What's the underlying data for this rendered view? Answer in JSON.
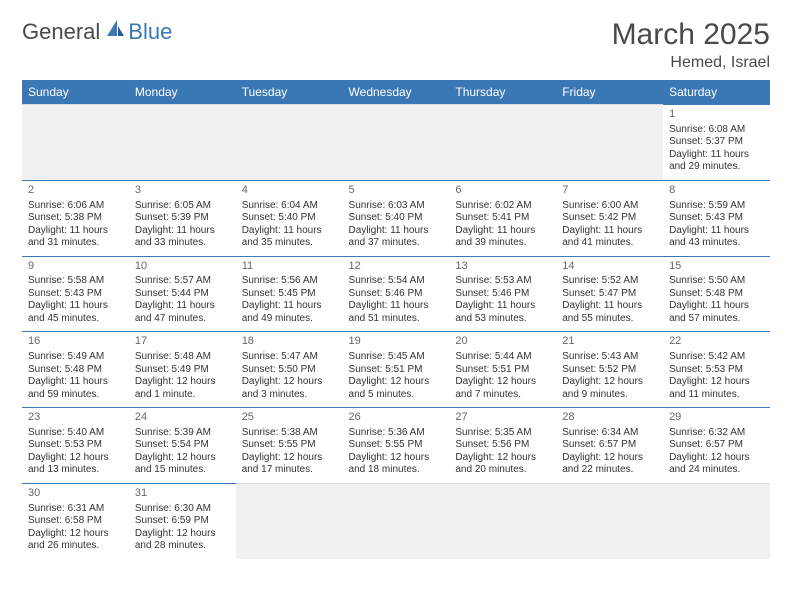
{
  "logo": {
    "text_general": "General",
    "text_blue": "Blue"
  },
  "title": {
    "month": "March 2025",
    "location": "Hemed, Israel"
  },
  "colors": {
    "header_bg": "#3a78b5",
    "header_text": "#ffffff",
    "border": "#3a78b5",
    "empty_bg": "#f1f1f1",
    "text": "#333333",
    "page_bg": "#ffffff"
  },
  "weekdays": [
    "Sunday",
    "Monday",
    "Tuesday",
    "Wednesday",
    "Thursday",
    "Friday",
    "Saturday"
  ],
  "month": {
    "first_weekday": 6,
    "num_days": 31
  },
  "days": {
    "1": {
      "sunrise": "6:08 AM",
      "sunset": "5:37 PM",
      "daylight": "11 hours and 29 minutes."
    },
    "2": {
      "sunrise": "6:06 AM",
      "sunset": "5:38 PM",
      "daylight": "11 hours and 31 minutes."
    },
    "3": {
      "sunrise": "6:05 AM",
      "sunset": "5:39 PM",
      "daylight": "11 hours and 33 minutes."
    },
    "4": {
      "sunrise": "6:04 AM",
      "sunset": "5:40 PM",
      "daylight": "11 hours and 35 minutes."
    },
    "5": {
      "sunrise": "6:03 AM",
      "sunset": "5:40 PM",
      "daylight": "11 hours and 37 minutes."
    },
    "6": {
      "sunrise": "6:02 AM",
      "sunset": "5:41 PM",
      "daylight": "11 hours and 39 minutes."
    },
    "7": {
      "sunrise": "6:00 AM",
      "sunset": "5:42 PM",
      "daylight": "11 hours and 41 minutes."
    },
    "8": {
      "sunrise": "5:59 AM",
      "sunset": "5:43 PM",
      "daylight": "11 hours and 43 minutes."
    },
    "9": {
      "sunrise": "5:58 AM",
      "sunset": "5:43 PM",
      "daylight": "11 hours and 45 minutes."
    },
    "10": {
      "sunrise": "5:57 AM",
      "sunset": "5:44 PM",
      "daylight": "11 hours and 47 minutes."
    },
    "11": {
      "sunrise": "5:56 AM",
      "sunset": "5:45 PM",
      "daylight": "11 hours and 49 minutes."
    },
    "12": {
      "sunrise": "5:54 AM",
      "sunset": "5:46 PM",
      "daylight": "11 hours and 51 minutes."
    },
    "13": {
      "sunrise": "5:53 AM",
      "sunset": "5:46 PM",
      "daylight": "11 hours and 53 minutes."
    },
    "14": {
      "sunrise": "5:52 AM",
      "sunset": "5:47 PM",
      "daylight": "11 hours and 55 minutes."
    },
    "15": {
      "sunrise": "5:50 AM",
      "sunset": "5:48 PM",
      "daylight": "11 hours and 57 minutes."
    },
    "16": {
      "sunrise": "5:49 AM",
      "sunset": "5:48 PM",
      "daylight": "11 hours and 59 minutes."
    },
    "17": {
      "sunrise": "5:48 AM",
      "sunset": "5:49 PM",
      "daylight": "12 hours and 1 minute."
    },
    "18": {
      "sunrise": "5:47 AM",
      "sunset": "5:50 PM",
      "daylight": "12 hours and 3 minutes."
    },
    "19": {
      "sunrise": "5:45 AM",
      "sunset": "5:51 PM",
      "daylight": "12 hours and 5 minutes."
    },
    "20": {
      "sunrise": "5:44 AM",
      "sunset": "5:51 PM",
      "daylight": "12 hours and 7 minutes."
    },
    "21": {
      "sunrise": "5:43 AM",
      "sunset": "5:52 PM",
      "daylight": "12 hours and 9 minutes."
    },
    "22": {
      "sunrise": "5:42 AM",
      "sunset": "5:53 PM",
      "daylight": "12 hours and 11 minutes."
    },
    "23": {
      "sunrise": "5:40 AM",
      "sunset": "5:53 PM",
      "daylight": "12 hours and 13 minutes."
    },
    "24": {
      "sunrise": "5:39 AM",
      "sunset": "5:54 PM",
      "daylight": "12 hours and 15 minutes."
    },
    "25": {
      "sunrise": "5:38 AM",
      "sunset": "5:55 PM",
      "daylight": "12 hours and 17 minutes."
    },
    "26": {
      "sunrise": "5:36 AM",
      "sunset": "5:55 PM",
      "daylight": "12 hours and 18 minutes."
    },
    "27": {
      "sunrise": "5:35 AM",
      "sunset": "5:56 PM",
      "daylight": "12 hours and 20 minutes."
    },
    "28": {
      "sunrise": "6:34 AM",
      "sunset": "6:57 PM",
      "daylight": "12 hours and 22 minutes."
    },
    "29": {
      "sunrise": "6:32 AM",
      "sunset": "6:57 PM",
      "daylight": "12 hours and 24 minutes."
    },
    "30": {
      "sunrise": "6:31 AM",
      "sunset": "6:58 PM",
      "daylight": "12 hours and 26 minutes."
    },
    "31": {
      "sunrise": "6:30 AM",
      "sunset": "6:59 PM",
      "daylight": "12 hours and 28 minutes."
    }
  },
  "labels": {
    "sunrise": "Sunrise:",
    "sunset": "Sunset:",
    "daylight": "Daylight:"
  }
}
